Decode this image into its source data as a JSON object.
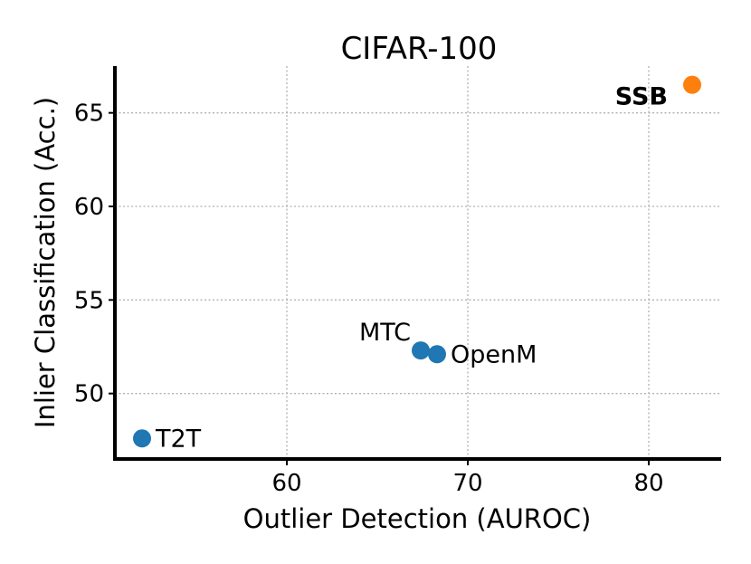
{
  "chart_data": {
    "type": "scatter",
    "title": "CIFAR-100",
    "xlabel": "Outlier Detection (AUROC)",
    "ylabel": "Inlier Classification (Acc.)",
    "xlim": [
      50.5,
      84.0
    ],
    "ylim": [
      46.5,
      67.5
    ],
    "xticks": [
      60,
      70,
      80
    ],
    "yticks": [
      50,
      55,
      60,
      65
    ],
    "grid": true,
    "points": [
      {
        "label": "T2T",
        "x": 52.0,
        "y": 47.6,
        "color": "#1f77b4",
        "bold": false,
        "label_pos": "right"
      },
      {
        "label": "MTC",
        "x": 67.4,
        "y": 52.3,
        "color": "#1f77b4",
        "bold": false,
        "label_pos": "upper-left"
      },
      {
        "label": "OpenM",
        "x": 68.3,
        "y": 52.1,
        "color": "#1f77b4",
        "bold": false,
        "label_pos": "right"
      },
      {
        "label": "SSB",
        "x": 82.4,
        "y": 66.5,
        "color": "#ff7f0e",
        "bold": true,
        "label_pos": "left"
      }
    ]
  }
}
